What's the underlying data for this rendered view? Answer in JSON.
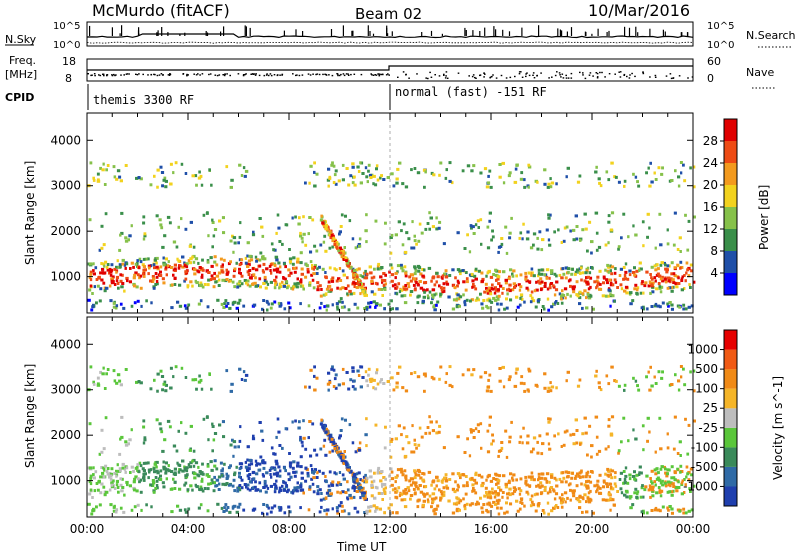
{
  "header": {
    "title": "McMurdo (fitACF)",
    "beam": "Beam 02",
    "date": "10/Mar/2016"
  },
  "status_panels": {
    "nsky_label": "N.Sky",
    "nsky_ticks": [
      "10^5",
      "10^0"
    ],
    "nsearch_label": "N.Search",
    "nsearch_ticks": [
      "10^5",
      "10^0"
    ],
    "freq_label": "Freq.",
    "freq_unit": "[MHz]",
    "freq_ticks": [
      "18",
      "8"
    ],
    "nave_label": "Nave",
    "nave_ticks": [
      "60",
      "0"
    ],
    "cpid_label": "CPID",
    "cpid_modes": [
      {
        "name": "themis 3300 RF",
        "start_hour": 0
      },
      {
        "name": "normal (fast) -151 RF",
        "start_hour": 12
      }
    ]
  },
  "chart_data": [
    {
      "type": "heatmap",
      "name": "power",
      "ylabel": "Slant Range [km]",
      "ylim": [
        200,
        4600
      ],
      "yticks": [
        1000,
        2000,
        3000,
        4000
      ],
      "xlim": [
        0,
        24
      ],
      "cbar_label": "Power [dB]",
      "cbar_ticks": [
        "28",
        "24",
        "20",
        "16",
        "12",
        "8",
        "4"
      ],
      "cbar_colors": [
        "#0000ff",
        "#1f4fa8",
        "#3a8f4a",
        "#86c14a",
        "#f2d21e",
        "#f39a1e",
        "#ee4b14",
        "#e00000"
      ]
    },
    {
      "type": "heatmap",
      "name": "velocity",
      "ylabel": "Slant Range [km]",
      "ylim": [
        200,
        4600
      ],
      "yticks": [
        1000,
        2000,
        3000,
        4000
      ],
      "xlim": [
        0,
        24
      ],
      "cbar_label": "Velocity [m s^-1]",
      "cbar_ticks": [
        "1000",
        "500",
        "100",
        "25",
        "-25",
        "-100",
        "-500",
        "-1000"
      ],
      "cbar_colors": [
        "#1f3fae",
        "#2f6aa6",
        "#3a8a5a",
        "#5ac63a",
        "#bdbdbd",
        "#f5b528",
        "#f08a16",
        "#f05a14",
        "#e60000"
      ]
    }
  ],
  "xaxis": {
    "label": "Time UT",
    "ticks": [
      "00:00",
      "04:00",
      "08:00",
      "12:00",
      "16:00",
      "20:00",
      "00:00"
    ],
    "tick_hours": [
      0,
      4,
      8,
      12,
      16,
      20,
      24
    ]
  }
}
